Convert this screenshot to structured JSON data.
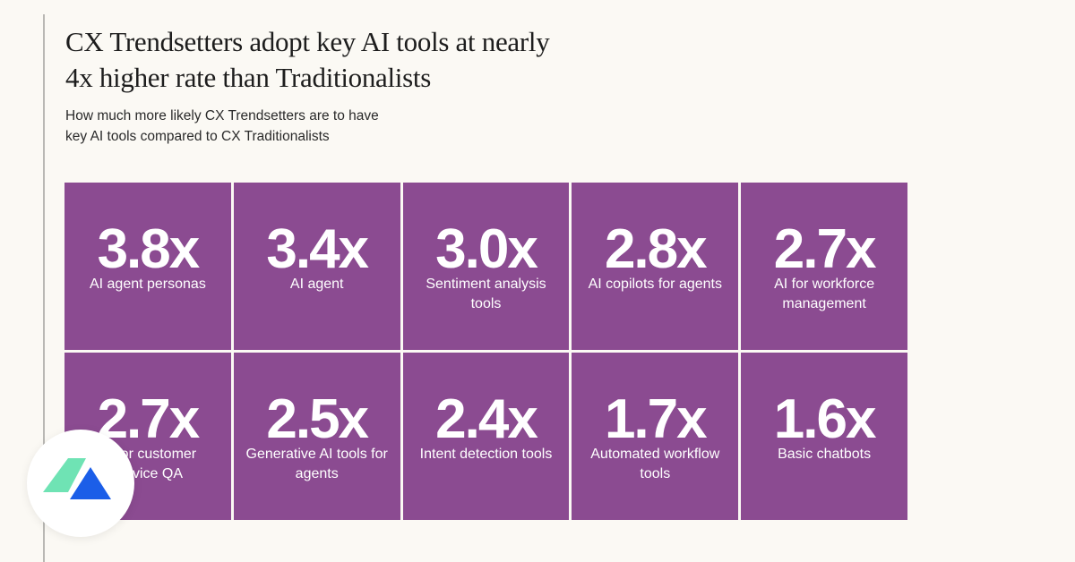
{
  "header": {
    "title_lines": [
      "CX Trendsetters adopt key AI tools at nearly",
      "4x higher rate than Traditionalists"
    ],
    "subtitle_lines": [
      "How much more likely CX Trendsetters are to have",
      "key AI tools compared to CX Traditionalists"
    ]
  },
  "colors": {
    "tile": "#8b4b91",
    "background": "#fbf9f4",
    "logo_green": "#6fe3b4",
    "logo_blue": "#1b5ee8"
  },
  "logo": {
    "icon": "brand-mountain-icon"
  },
  "chart_data": {
    "type": "table",
    "title": "CX Trendsetters adopt key AI tools at nearly 4x higher rate than Traditionalists",
    "subtitle": "How much more likely CX Trendsetters are to have key AI tools compared to CX Traditionalists",
    "unit": "x",
    "items": [
      {
        "value": "3.8x",
        "label": "AI agent personas"
      },
      {
        "value": "3.4x",
        "label": "AI agent"
      },
      {
        "value": "3.0x",
        "label": "Sentiment analysis tools"
      },
      {
        "value": "2.8x",
        "label": "AI copilots for agents"
      },
      {
        "value": "2.7x",
        "label": "AI for workforce management"
      },
      {
        "value": "2.7x",
        "label": "AI for customer service QA"
      },
      {
        "value": "2.5x",
        "label": "Generative AI tools for agents"
      },
      {
        "value": "2.4x",
        "label": "Intent detection tools"
      },
      {
        "value": "1.7x",
        "label": "Automated workflow tools"
      },
      {
        "value": "1.6x",
        "label": "Basic chatbots"
      }
    ]
  }
}
